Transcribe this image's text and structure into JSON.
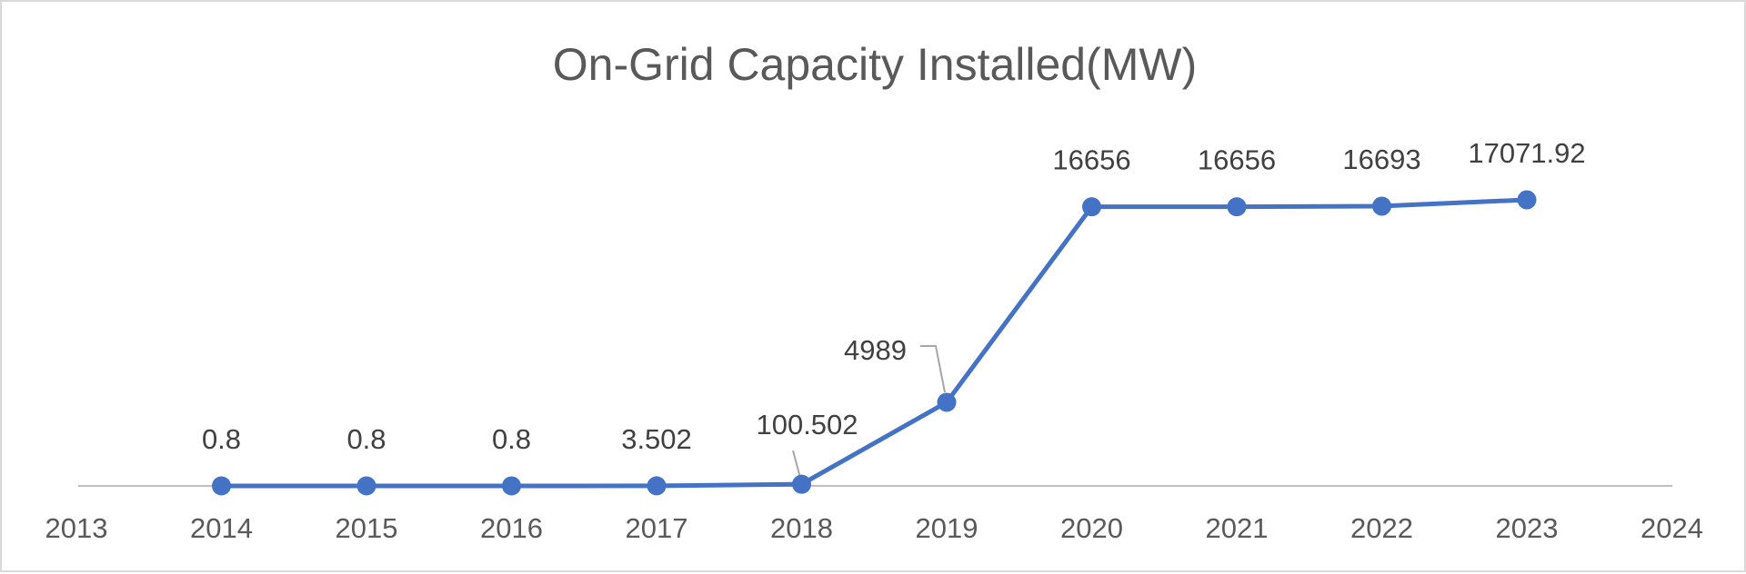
{
  "chart_data": {
    "type": "line",
    "title": "On-Grid Capacity Installed(MW)",
    "xlabel": "",
    "ylabel": "",
    "x_ticks": [
      "2013",
      "2014",
      "2015",
      "2016",
      "2017",
      "2018",
      "2019",
      "2020",
      "2021",
      "2022",
      "2023",
      "2024"
    ],
    "categories": [
      "2014",
      "2015",
      "2016",
      "2017",
      "2018",
      "2019",
      "2020",
      "2021",
      "2022",
      "2023"
    ],
    "series": [
      {
        "name": "On-Grid Capacity Installed(MW)",
        "values": [
          0.8,
          0.8,
          0.8,
          3.502,
          100.502,
          4989,
          16656,
          16656,
          16693,
          17071.92
        ],
        "data_labels": [
          "0.8",
          "0.8",
          "0.8",
          "3.502",
          "100.502",
          "4989",
          "16656",
          "16656",
          "16693",
          "17071.92"
        ],
        "color": "#4472c4"
      }
    ],
    "ylim": [
      0,
      17500
    ],
    "grid": false,
    "legend": "none",
    "axis_color": "#bfbfbf",
    "leader_line_color": "#a6a6a6"
  }
}
